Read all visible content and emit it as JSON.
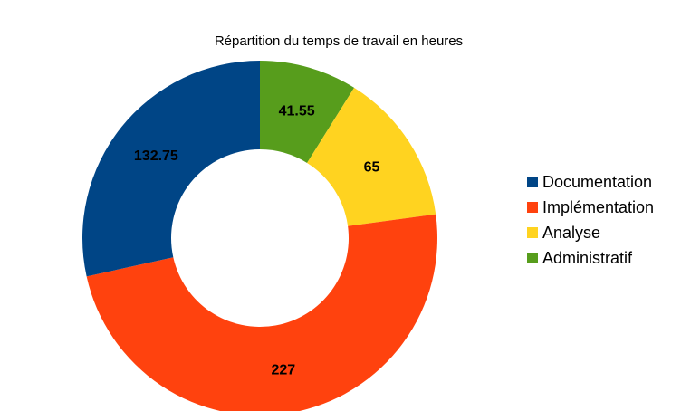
{
  "chart_data": {
    "type": "pie",
    "variant": "donut",
    "title": "Répartition du temps de travail en heures",
    "legend_position": "right",
    "data_labels": [
      "41.55",
      "65",
      "227",
      "132.75"
    ],
    "slices": [
      {
        "name": "Administratif",
        "value": 41.55,
        "color": "#579d1c"
      },
      {
        "name": "Analyse",
        "value": 65,
        "color": "#ffd320"
      },
      {
        "name": "Implémentation",
        "value": 227,
        "color": "#ff420e"
      },
      {
        "name": "Documentation",
        "value": 132.75,
        "color": "#004586"
      }
    ],
    "legend": [
      {
        "name": "Documentation",
        "color": "#004586"
      },
      {
        "name": "Implémentation",
        "color": "#ff420e"
      },
      {
        "name": "Analyse",
        "color": "#ffd320"
      },
      {
        "name": "Administratif",
        "color": "#579d1c"
      }
    ]
  }
}
